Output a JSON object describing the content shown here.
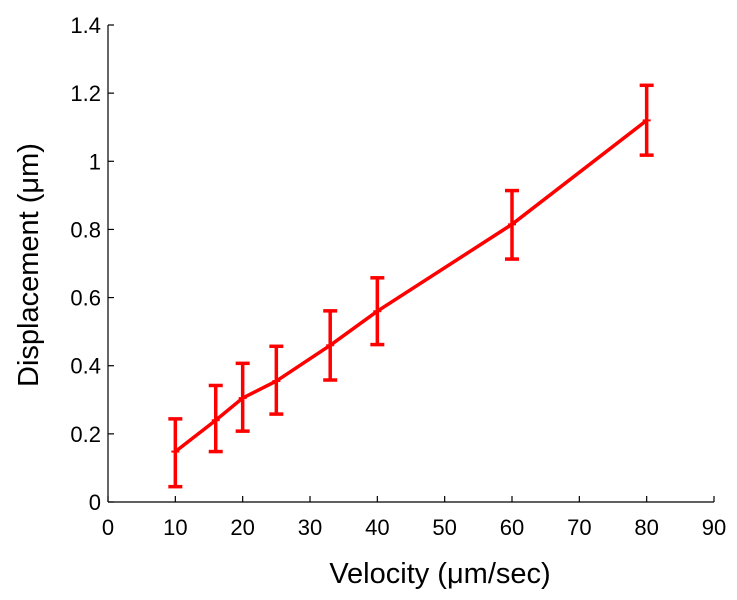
{
  "chart_data": {
    "type": "line",
    "title": "",
    "xlabel": "Velocity (μm/sec)",
    "ylabel": "Displacement (μm)",
    "xlim": [
      0,
      90
    ],
    "ylim": [
      0,
      1.4
    ],
    "x_ticks": [
      0,
      10,
      20,
      30,
      40,
      50,
      60,
      70,
      80,
      90
    ],
    "y_ticks": [
      0,
      0.2,
      0.4,
      0.6,
      0.8,
      1,
      1.2,
      1.4
    ],
    "x_tick_labels": [
      "0",
      "10",
      "20",
      "30",
      "40",
      "50",
      "60",
      "70",
      "80",
      "90"
    ],
    "y_tick_labels": [
      "0",
      "0.2",
      "0.4",
      "0.6",
      "0.8",
      "1",
      "1.2",
      "1.4"
    ],
    "grid": false,
    "legend": "none",
    "color": "#ff0000",
    "series": [
      {
        "x": [
          10,
          16,
          20,
          25,
          33,
          40,
          60,
          80
        ],
        "y": [
          0.148,
          0.24,
          0.305,
          0.355,
          0.46,
          0.56,
          0.815,
          1.12
        ],
        "err_low": [
          0.045,
          0.148,
          0.208,
          0.258,
          0.358,
          0.462,
          0.713,
          1.018
        ],
        "err_high": [
          0.244,
          0.342,
          0.407,
          0.457,
          0.561,
          0.658,
          0.914,
          1.223
        ]
      }
    ]
  }
}
